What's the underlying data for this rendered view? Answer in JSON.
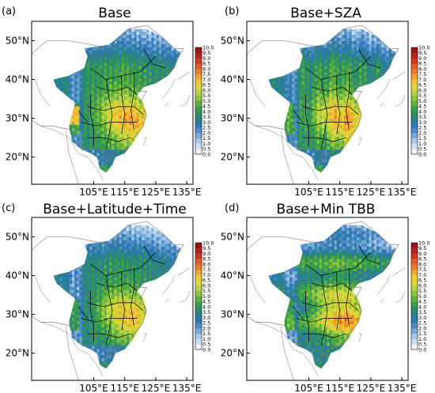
{
  "figure": {
    "panels": [
      {
        "letter": "(a)",
        "title": "Base"
      },
      {
        "letter": "(b)",
        "title": "Base+SZA"
      },
      {
        "letter": "(c)",
        "title": "Base+Latitude+Time"
      },
      {
        "letter": "(d)",
        "title": "Base+Min TBB"
      }
    ],
    "lat_ticks": [
      "20°N",
      "30°N",
      "40°N",
      "50°N"
    ],
    "lat_values": [
      20,
      30,
      40,
      50
    ],
    "lon_ticks": [
      "105°E",
      "115°E",
      "125°E",
      "135°E"
    ],
    "lon_values": [
      105,
      115,
      125,
      135
    ],
    "lon_range": [
      85,
      137
    ],
    "lat_range": [
      13,
      55
    ],
    "colorbar": {
      "ticks": [
        "10.0",
        "9.5",
        "9.0",
        "8.5",
        "8.0",
        "7.5",
        "7.0",
        "6.5",
        "6.0",
        "5.5",
        "5.0",
        "4.5",
        "4.0",
        "3.5",
        "3.0",
        "2.5",
        "2.0",
        "1.5",
        "1.0",
        "0.5",
        "0.0"
      ],
      "colors": [
        "#f2f5fb",
        "#cfe0f2",
        "#a8c9e8",
        "#79abd8",
        "#4d8cc4",
        "#2f78b3",
        "#2a7f93",
        "#2a8e6a",
        "#3a9e4a",
        "#5fb03f",
        "#8cc33f",
        "#b8d33f",
        "#dcd83a",
        "#f0c836",
        "#f3a52f",
        "#ee7d2a",
        "#e35824",
        "#d1381f",
        "#b8221c",
        "#9e1217"
      ]
    },
    "colors": {
      "land_bg": "#ffffff",
      "province_line": "#000000",
      "country_line": "#777777"
    }
  }
}
